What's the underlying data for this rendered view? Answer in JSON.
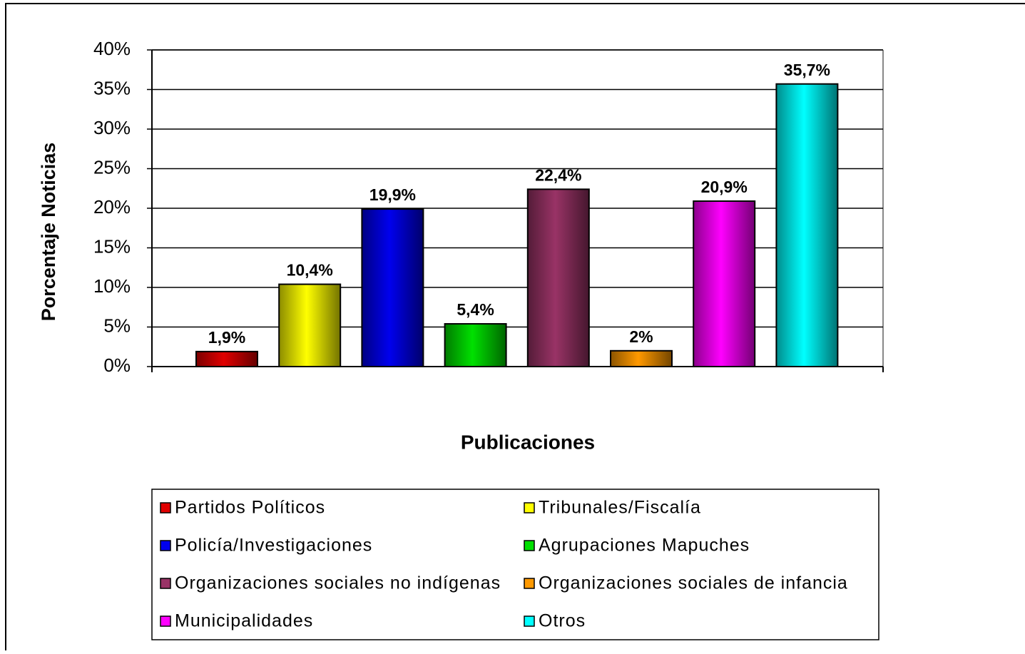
{
  "chart_data": {
    "type": "bar",
    "y_label": "Porcentaje Noticias",
    "x_label": "Publicaciones",
    "ylim": [
      0,
      40
    ],
    "yticks": [
      {
        "value": 0,
        "label": "0%"
      },
      {
        "value": 5,
        "label": "5%"
      },
      {
        "value": 10,
        "label": "10%"
      },
      {
        "value": 15,
        "label": "15%"
      },
      {
        "value": 20,
        "label": "20%"
      },
      {
        "value": 25,
        "label": "25%"
      },
      {
        "value": 30,
        "label": "30%"
      },
      {
        "value": 35,
        "label": "35%"
      },
      {
        "value": 40,
        "label": "40%"
      }
    ],
    "grid": true,
    "legend": "bottom",
    "series": [
      {
        "name": "Partidos Políticos",
        "color": "#e00000",
        "values": [
          1.9
        ],
        "value_labels": [
          "1,9%"
        ]
      },
      {
        "name": "Tribunales/Fiscalía",
        "color": "#ffff00",
        "values": [
          10.4
        ],
        "value_labels": [
          "10,4%"
        ]
      },
      {
        "name": "Policía/Investigaciones",
        "color": "#0000ee",
        "values": [
          19.9
        ],
        "value_labels": [
          "19,9%"
        ]
      },
      {
        "name": "Agrupaciones Mapuches",
        "color": "#00e000",
        "values": [
          5.4
        ],
        "value_labels": [
          "5,4%"
        ]
      },
      {
        "name": "Organizaciones sociales no indígenas",
        "color": "#993366",
        "values": [
          22.4
        ],
        "value_labels": [
          "22,4%"
        ]
      },
      {
        "name": "Organizaciones sociales de infancia",
        "color": "#ff9900",
        "values": [
          2
        ],
        "value_labels": [
          "2%"
        ]
      },
      {
        "name": "Municipalidades",
        "color": "#ff00ff",
        "values": [
          20.9
        ],
        "value_labels": [
          "20,9%"
        ]
      },
      {
        "name": "Otros",
        "color": "#00ffff",
        "values": [
          35.7
        ],
        "value_labels": [
          "35,7%"
        ]
      }
    ]
  }
}
